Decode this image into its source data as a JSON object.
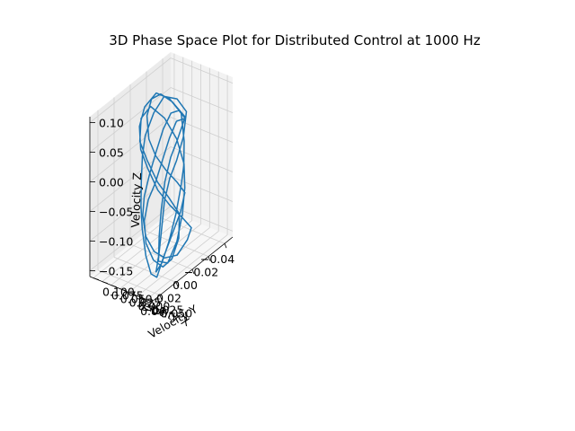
{
  "chart_data": {
    "type": "line",
    "projection": "3d",
    "title": "3D Phase Space Plot for Distributed Control at 1000 Hz",
    "xlabel": "Velocity X",
    "ylabel": "Velocity Y",
    "zlabel": "Velocity Z",
    "xlim": [
      -0.05,
      0.05
    ],
    "ylim": [
      -0.065,
      0.11
    ],
    "zlim": [
      -0.16,
      0.11
    ],
    "x_ticks": [
      "−0.04",
      "−0.02",
      "0.00",
      "0.02",
      "0.04"
    ],
    "x_tick_values": [
      -0.04,
      -0.02,
      0.0,
      0.02,
      0.04
    ],
    "y_ticks": [
      "−0.050",
      "−0.025",
      "0.000",
      "0.025",
      "0.050",
      "0.075",
      "0.100"
    ],
    "y_tick_values": [
      -0.05,
      -0.025,
      0.0,
      0.025,
      0.05,
      0.075,
      0.1
    ],
    "z_ticks": [
      "−0.15",
      "−0.10",
      "−0.05",
      "0.00",
      "0.05",
      "0.10"
    ],
    "z_tick_values": [
      -0.15,
      -0.1,
      -0.05,
      0.0,
      0.05,
      0.1
    ],
    "grid": true,
    "series_color": "#1f77b4",
    "series": [
      {
        "points": [
          [
            -0.044,
            0.055,
            0.02
          ],
          [
            -0.03,
            0.06,
            0.06
          ],
          [
            -0.015,
            0.058,
            0.09
          ],
          [
            0.0,
            0.05,
            0.1
          ],
          [
            0.01,
            0.04,
            0.085
          ],
          [
            0.012,
            0.03,
            0.05
          ],
          [
            0.008,
            0.02,
            0.02
          ],
          [
            0.0,
            0.01,
            -0.01
          ],
          [
            -0.01,
            0.0,
            -0.04
          ],
          [
            -0.015,
            -0.01,
            -0.06
          ],
          [
            -0.005,
            -0.02,
            -0.08
          ],
          [
            0.01,
            -0.03,
            -0.1
          ],
          [
            0.025,
            -0.04,
            -0.12
          ],
          [
            0.035,
            -0.045,
            -0.14
          ],
          [
            0.04,
            -0.04,
            -0.13
          ],
          [
            0.042,
            -0.03,
            -0.1
          ],
          [
            0.04,
            -0.015,
            -0.06
          ],
          [
            0.035,
            0.0,
            -0.03
          ],
          [
            0.028,
            0.015,
            0.0
          ],
          [
            0.02,
            0.03,
            0.03
          ],
          [
            0.01,
            0.045,
            0.05
          ],
          [
            -0.005,
            0.055,
            0.07
          ],
          [
            -0.02,
            0.06,
            0.08
          ],
          [
            -0.035,
            0.058,
            0.06
          ],
          [
            -0.044,
            0.052,
            0.03
          ],
          [
            -0.035,
            0.04,
            0.0
          ],
          [
            -0.02,
            0.025,
            -0.02
          ],
          [
            -0.005,
            0.01,
            -0.03
          ],
          [
            0.008,
            -0.005,
            -0.05
          ],
          [
            0.018,
            -0.02,
            -0.08
          ],
          [
            0.028,
            -0.035,
            -0.11
          ],
          [
            0.036,
            -0.045,
            -0.13
          ],
          [
            0.03,
            -0.048,
            -0.12
          ],
          [
            0.018,
            -0.04,
            -0.1
          ],
          [
            0.005,
            -0.03,
            -0.07
          ],
          [
            -0.008,
            -0.015,
            -0.04
          ],
          [
            -0.018,
            0.0,
            -0.02
          ],
          [
            -0.025,
            0.015,
            0.01
          ],
          [
            -0.028,
            0.03,
            0.05
          ],
          [
            -0.02,
            0.045,
            0.08
          ],
          [
            -0.008,
            0.055,
            0.1
          ],
          [
            0.005,
            0.058,
            0.09
          ],
          [
            0.015,
            0.05,
            0.07
          ],
          [
            0.02,
            0.035,
            0.04
          ],
          [
            0.018,
            0.02,
            0.01
          ],
          [
            0.012,
            0.005,
            -0.03
          ],
          [
            0.004,
            -0.01,
            -0.06
          ],
          [
            -0.006,
            -0.025,
            -0.09
          ],
          [
            -0.012,
            -0.035,
            -0.11
          ],
          [
            -0.004,
            -0.042,
            -0.12
          ],
          [
            0.01,
            -0.045,
            -0.13
          ],
          [
            0.024,
            -0.042,
            -0.12
          ],
          [
            0.034,
            -0.035,
            -0.1
          ],
          [
            0.04,
            -0.025,
            -0.07
          ],
          [
            0.038,
            -0.012,
            -0.04
          ],
          [
            0.03,
            0.002,
            -0.02
          ],
          [
            0.018,
            0.015,
            0.0
          ],
          [
            0.004,
            0.028,
            0.02
          ],
          [
            -0.01,
            0.04,
            0.04
          ],
          [
            -0.024,
            0.05,
            0.05
          ],
          [
            -0.036,
            0.055,
            0.04
          ],
          [
            -0.043,
            0.054,
            0.02
          ],
          [
            -0.03,
            0.045,
            0.0
          ],
          [
            -0.015,
            0.03,
            -0.01
          ],
          [
            0.0,
            0.012,
            -0.03
          ],
          [
            0.012,
            -0.005,
            -0.06
          ],
          [
            0.022,
            -0.022,
            -0.09
          ],
          [
            0.03,
            -0.038,
            -0.12
          ],
          [
            0.022,
            -0.046,
            -0.13
          ],
          [
            0.008,
            -0.04,
            -0.11
          ],
          [
            -0.004,
            -0.028,
            -0.08
          ],
          [
            -0.014,
            -0.012,
            -0.05
          ],
          [
            -0.02,
            0.004,
            -0.02
          ],
          [
            -0.018,
            0.02,
            0.02
          ],
          [
            -0.01,
            0.036,
            0.06
          ],
          [
            0.002,
            0.048,
            0.09
          ],
          [
            0.012,
            0.052,
            0.08
          ],
          [
            0.018,
            0.042,
            0.05
          ],
          [
            0.016,
            0.026,
            0.02
          ],
          [
            0.01,
            0.01,
            -0.02
          ],
          [
            0.003,
            -0.006,
            -0.05
          ],
          [
            -0.003,
            -0.022,
            -0.08
          ],
          [
            0.004,
            -0.036,
            -0.11
          ],
          [
            0.016,
            -0.044,
            -0.13
          ],
          [
            0.028,
            -0.046,
            -0.13
          ],
          [
            0.037,
            -0.04,
            -0.11
          ],
          [
            0.041,
            -0.028,
            -0.08
          ],
          [
            0.037,
            -0.014,
            -0.05
          ],
          [
            0.026,
            0.0,
            -0.03
          ],
          [
            0.012,
            0.012,
            -0.02
          ],
          [
            -0.002,
            0.024,
            0.0
          ],
          [
            -0.016,
            0.036,
            0.02
          ],
          [
            -0.03,
            0.048,
            0.03
          ],
          [
            -0.042,
            0.054,
            0.02
          ]
        ]
      }
    ]
  }
}
